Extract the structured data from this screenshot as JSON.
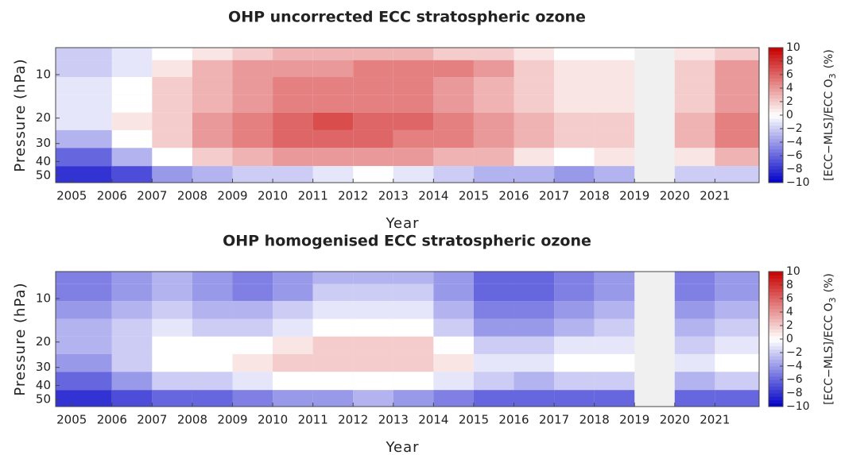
{
  "chart_data": [
    {
      "type": "heatmap",
      "title": "OHP uncorrected ECC stratospheric ozone",
      "xlabel": "Year",
      "ylabel": "Pressure (hPa)",
      "x": [
        2005,
        2006,
        2007,
        2008,
        2009,
        2010,
        2011,
        2012,
        2013,
        2014,
        2015,
        2016,
        2017,
        2018,
        2019,
        2020,
        2021
      ],
      "xlim": [
        2004.6,
        2022.1
      ],
      "xticks": [
        2005,
        2006,
        2007,
        2008,
        2009,
        2010,
        2011,
        2012,
        2013,
        2014,
        2015,
        2016,
        2017,
        2018,
        2019,
        2020,
        2021
      ],
      "y": [
        7,
        9,
        12,
        16,
        21,
        28,
        37,
        50
      ],
      "ylim": [
        6.5,
        56
      ],
      "yscale": "log",
      "y_inverted": true,
      "yticks": [
        10,
        20,
        30,
        40,
        50
      ],
      "values": [
        [
          -2,
          -1,
          0,
          1,
          2,
          3,
          3,
          3,
          3,
          2,
          2,
          1,
          0,
          0,
          null,
          1,
          2
        ],
        [
          -2,
          -1,
          1,
          3,
          4,
          4,
          4,
          5,
          5,
          5,
          4,
          2,
          1,
          1,
          null,
          2,
          4
        ],
        [
          -1,
          0,
          2,
          3,
          4,
          5,
          5,
          5,
          5,
          4,
          3,
          2,
          1,
          1,
          null,
          2,
          4
        ],
        [
          -1,
          0,
          2,
          3,
          4,
          5,
          5,
          5,
          5,
          4,
          3,
          2,
          1,
          1,
          null,
          2,
          4
        ],
        [
          -1,
          1,
          2,
          4,
          5,
          6,
          7,
          6,
          6,
          5,
          4,
          3,
          2,
          2,
          null,
          3,
          5
        ],
        [
          -3,
          0,
          2,
          4,
          5,
          6,
          6,
          6,
          5,
          5,
          4,
          3,
          2,
          2,
          null,
          3,
          5
        ],
        [
          -6,
          -3,
          0,
          2,
          3,
          4,
          4,
          4,
          4,
          3,
          3,
          1,
          0,
          1,
          null,
          1,
          3
        ],
        [
          -8,
          -7,
          -4,
          -3,
          -2,
          -2,
          -1,
          0,
          -1,
          -2,
          -3,
          -3,
          -4,
          -3,
          null,
          -2,
          -2
        ]
      ],
      "colormap": [
        "#0000c8",
        "#ffffff",
        "#c80000"
      ],
      "clim": [
        -10,
        10
      ],
      "cbticks": [
        {
          "value": -10,
          "label": "−10"
        },
        {
          "value": -8,
          "label": "−8"
        },
        {
          "value": -6,
          "label": "−6"
        },
        {
          "value": -4,
          "label": "−4"
        },
        {
          "value": -2,
          "label": "−2"
        },
        0,
        2,
        4,
        6,
        8,
        10
      ],
      "colorbar_label": {
        "text": "[ECC−MLS]/ECC O",
        "subscript": "3",
        "unit": "(%)"
      }
    },
    {
      "type": "heatmap",
      "title": "OHP homogenised ECC stratospheric ozone",
      "xlabel": "Year",
      "ylabel": "Pressure (hPa)",
      "x": [
        2005,
        2006,
        2007,
        2008,
        2009,
        2010,
        2011,
        2012,
        2013,
        2014,
        2015,
        2016,
        2017,
        2018,
        2019,
        2020,
        2021
      ],
      "xlim": [
        2004.6,
        2022.1
      ],
      "xticks": [
        2005,
        2006,
        2007,
        2008,
        2009,
        2010,
        2011,
        2012,
        2013,
        2014,
        2015,
        2016,
        2017,
        2018,
        2019,
        2020,
        2021
      ],
      "y": [
        7,
        9,
        12,
        16,
        21,
        28,
        37,
        50
      ],
      "ylim": [
        6.5,
        56
      ],
      "yscale": "log",
      "y_inverted": true,
      "yticks": [
        10,
        20,
        30,
        40,
        50
      ],
      "values": [
        [
          -5,
          -4,
          -3,
          -4,
          -5,
          -4,
          -3,
          -3,
          -3,
          -4,
          -6,
          -6,
          -5,
          -4,
          null,
          -5,
          -4
        ],
        [
          -5,
          -4,
          -3,
          -4,
          -5,
          -4,
          -2,
          -2,
          -2,
          -4,
          -6,
          -6,
          -5,
          -4,
          null,
          -5,
          -4
        ],
        [
          -4,
          -3,
          -2,
          -3,
          -3,
          -2,
          -1,
          -1,
          -1,
          -3,
          -5,
          -5,
          -4,
          -3,
          null,
          -4,
          -3
        ],
        [
          -3,
          -2,
          -1,
          -2,
          -2,
          -1,
          0,
          0,
          0,
          -2,
          -4,
          -4,
          -3,
          -2,
          null,
          -3,
          -2
        ],
        [
          -3,
          -2,
          0,
          0,
          0,
          1,
          2,
          2,
          2,
          0,
          -2,
          -2,
          -1,
          -1,
          null,
          -2,
          -1
        ],
        [
          -4,
          -2,
          0,
          0,
          1,
          2,
          2,
          2,
          2,
          1,
          -1,
          -1,
          0,
          0,
          null,
          -1,
          0
        ],
        [
          -6,
          -4,
          -2,
          -2,
          -1,
          0,
          0,
          0,
          0,
          -1,
          -2,
          -3,
          -2,
          -2,
          null,
          -3,
          -2
        ],
        [
          -8,
          -7,
          -6,
          -6,
          -5,
          -4,
          -4,
          -3,
          -4,
          -5,
          -6,
          -6,
          -6,
          -6,
          null,
          -6,
          -6
        ]
      ],
      "colormap": [
        "#0000c8",
        "#ffffff",
        "#c80000"
      ],
      "clim": [
        -10,
        10
      ],
      "cbticks": [
        {
          "value": -10,
          "label": "−10"
        },
        {
          "value": -8,
          "label": "−8"
        },
        {
          "value": -6,
          "label": "−6"
        },
        {
          "value": -4,
          "label": "−4"
        },
        {
          "value": -2,
          "label": "−2"
        },
        0,
        2,
        4,
        6,
        8,
        10
      ],
      "colorbar_label": {
        "text": "[ECC−MLS]/ECC O",
        "subscript": "3",
        "unit": "(%)"
      }
    }
  ]
}
